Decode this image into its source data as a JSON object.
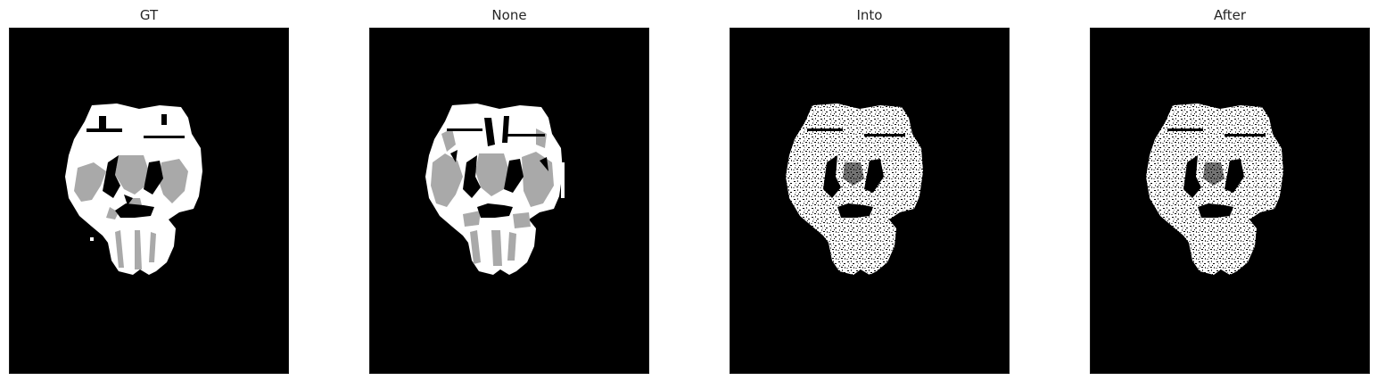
{
  "panels": [
    {
      "title": "GT",
      "style": "segmentation"
    },
    {
      "title": "None",
      "style": "segmentation-detailed"
    },
    {
      "title": "Into",
      "style": "noisy"
    },
    {
      "title": "After",
      "style": "noisy"
    }
  ],
  "colors": {
    "background": "#000000",
    "white_matter": "#ffffff",
    "gray_matter": "#a9a9a9",
    "page": "#ffffff"
  }
}
